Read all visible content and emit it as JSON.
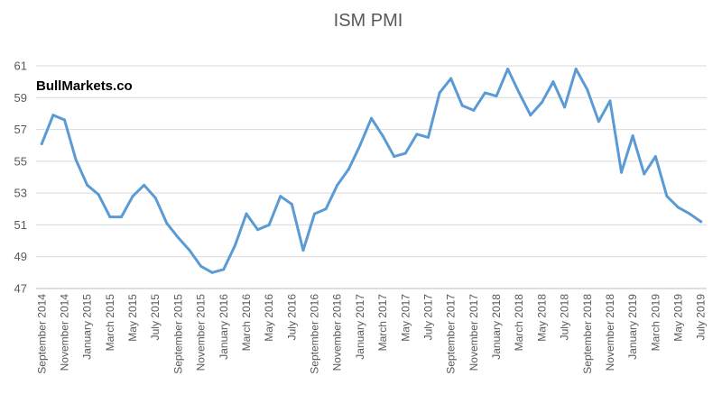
{
  "watermark": "BullMarkets.co",
  "colors": {
    "line": "#5b9bd5",
    "grid": "#d9d9d9",
    "text": "#595959"
  },
  "chart_data": {
    "type": "line",
    "title": "ISM PMI",
    "xlabel": "",
    "ylabel": "",
    "ylim": [
      47,
      61
    ],
    "yticks": [
      47,
      49,
      51,
      53,
      55,
      57,
      59,
      61
    ],
    "grid": true,
    "legend": "none",
    "x": [
      "September 2014",
      "October 2014",
      "November 2014",
      "December 2014",
      "January 2015",
      "February 2015",
      "March 2015",
      "April 2015",
      "May 2015",
      "June 2015",
      "July 2015",
      "August 2015",
      "September 2015",
      "October 2015",
      "November 2015",
      "December 2015",
      "January 2016",
      "February 2016",
      "March 2016",
      "April 2016",
      "May 2016",
      "June 2016",
      "July 2016",
      "August 2016",
      "September 2016",
      "October 2016",
      "November 2016",
      "December 2016",
      "January 2017",
      "February 2017",
      "March 2017",
      "April 2017",
      "May 2017",
      "June 2017",
      "July 2017",
      "August 2017",
      "September 2017",
      "October 2017",
      "November 2017",
      "December 2017",
      "January 2018",
      "February 2018",
      "March 2018",
      "April 2018",
      "May 2018",
      "June 2018",
      "July 2018",
      "August 2018",
      "September 2018",
      "October 2018",
      "November 2018",
      "December 2018",
      "January 2019",
      "February 2019",
      "March 2019",
      "April 2019",
      "May 2019",
      "June 2019",
      "July 2019"
    ],
    "x_tick_labels": [
      "September 2014",
      "November 2014",
      "January 2015",
      "March 2015",
      "May 2015",
      "July 2015",
      "September 2015",
      "November 2015",
      "January 2016",
      "March 2016",
      "May 2016",
      "July 2016",
      "September 2016",
      "November 2016",
      "January 2017",
      "March 2017",
      "May 2017",
      "July 2017",
      "September 2017",
      "November 2017",
      "January 2018",
      "March 2018",
      "May 2018",
      "July 2018",
      "September 2018",
      "November 2018",
      "January 2019",
      "March 2019",
      "May 2019",
      "July 2019"
    ],
    "series": [
      {
        "values": [
          56.1,
          57.9,
          57.6,
          55.1,
          53.5,
          52.9,
          51.5,
          51.5,
          52.8,
          53.5,
          52.7,
          51.1,
          50.2,
          49.4,
          48.4,
          48.0,
          48.2,
          49.7,
          51.7,
          50.7,
          51.0,
          52.8,
          52.3,
          49.4,
          51.7,
          52.0,
          53.5,
          54.5,
          56.0,
          57.7,
          56.6,
          55.3,
          55.5,
          56.7,
          56.5,
          59.3,
          60.2,
          58.5,
          58.2,
          59.3,
          59.1,
          60.8,
          59.3,
          57.9,
          58.7,
          60.0,
          58.4,
          60.8,
          59.5,
          57.5,
          58.8,
          54.3,
          56.6,
          54.2,
          55.3,
          52.8,
          52.1,
          51.7,
          51.2
        ]
      }
    ]
  }
}
